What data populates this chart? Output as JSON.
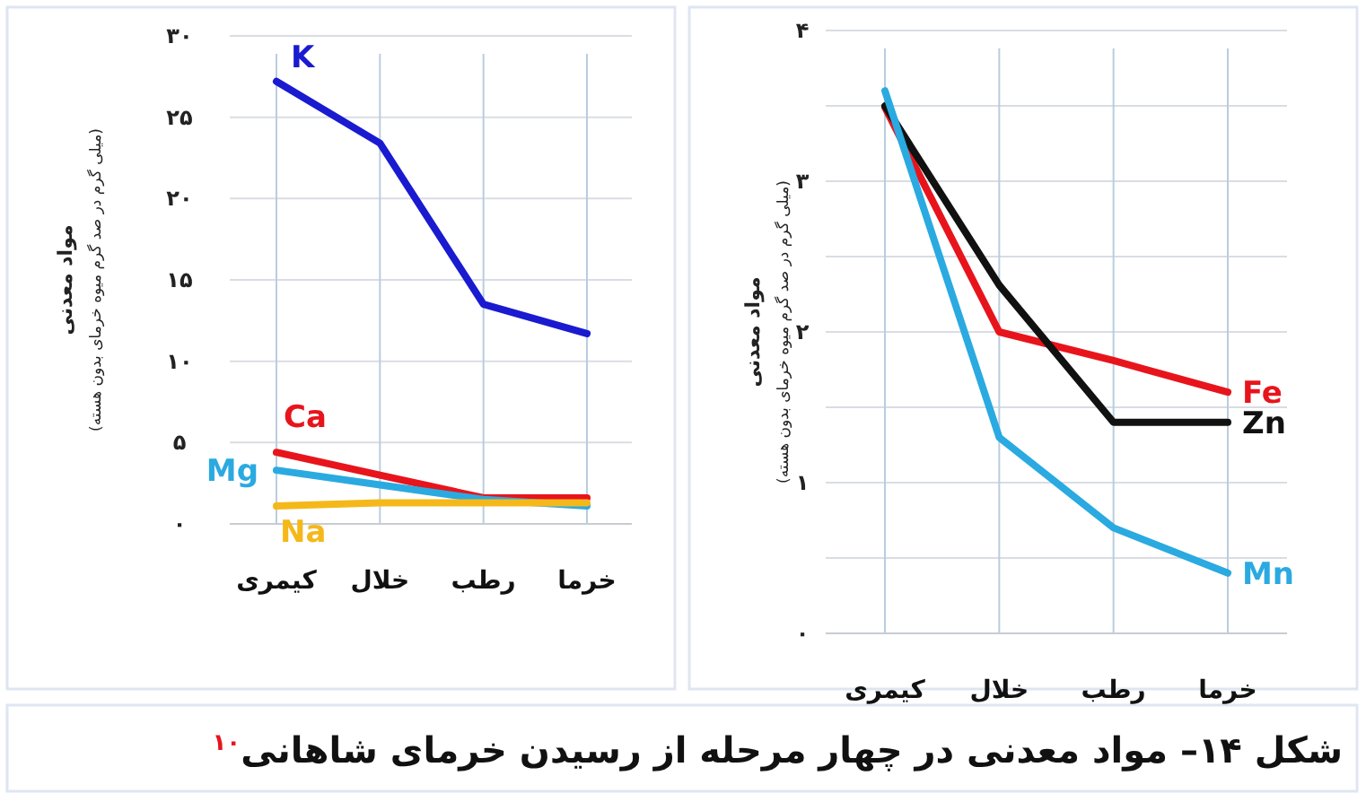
{
  "chart_data": [
    {
      "type": "line",
      "title": "شکل ۱۴– مواد معدنی در چهار مرحله از رسیدن خرمای شاهانی$^{۱۰}$",
      "ylabel": "مواد معدنی\n(میلی گرم در صد گرم میوه خرمای بدون هسته)",
      "categories": [
        "کیمری",
        "خلال",
        "رطب",
        "خرما"
      ],
      "series": [
        {
          "name": "K",
          "color": "#1a1ad0",
          "values": [
            27.2,
            23.4,
            13.5,
            11.7
          ]
        },
        {
          "name": "Ca",
          "color": "#e8141c",
          "values": [
            4.4,
            3.0,
            1.6,
            1.6
          ]
        },
        {
          "name": "Mg",
          "color": "#2aaae0",
          "values": [
            3.3,
            2.4,
            1.5,
            1.1
          ]
        },
        {
          "name": "Na",
          "color": "#f5b81a",
          "values": [
            1.1,
            1.3,
            1.3,
            1.3
          ]
        }
      ],
      "ylim": [
        0,
        30
      ],
      "yticks": [
        {
          "value": 0,
          "label": "۰"
        },
        {
          "value": 5,
          "label": "۵"
        },
        {
          "value": 10,
          "label": "۱۰"
        },
        {
          "value": 15,
          "label": "۱۵"
        },
        {
          "value": 20,
          "label": "۲۰"
        },
        {
          "value": 25,
          "label": "۲۵"
        },
        {
          "value": 30,
          "label": "۳۰"
        }
      ],
      "grid": true
    },
    {
      "type": "line",
      "ylabel": "مواد معدنی\n(میلی گرم در صد گرم میوه خرمای بدون هسته)",
      "categories": [
        "کیمری",
        "خلال",
        "رطب",
        "خرما"
      ],
      "series": [
        {
          "name": "Fe",
          "color": "#e8141c",
          "values": [
            3.49,
            2.0,
            1.81,
            1.6
          ]
        },
        {
          "name": "Zn",
          "color": "#111111",
          "values": [
            3.5,
            2.31,
            1.4,
            1.4
          ]
        },
        {
          "name": "Mn",
          "color": "#2aaae0",
          "values": [
            3.6,
            1.3,
            0.7,
            0.4
          ]
        }
      ],
      "ylim": [
        0,
        4
      ],
      "yticks": [
        {
          "value": 0,
          "label": "۰"
        },
        {
          "value": 0.5,
          "label": null
        },
        {
          "value": 1,
          "label": "۱"
        },
        {
          "value": 1.5,
          "label": null
        },
        {
          "value": 2,
          "label": "۲"
        },
        {
          "value": 2.5,
          "label": null
        },
        {
          "value": 3,
          "label": "۳"
        },
        {
          "value": 3.5,
          "label": null
        },
        {
          "value": 4,
          "label": "۴"
        }
      ],
      "grid": true
    }
  ]
}
